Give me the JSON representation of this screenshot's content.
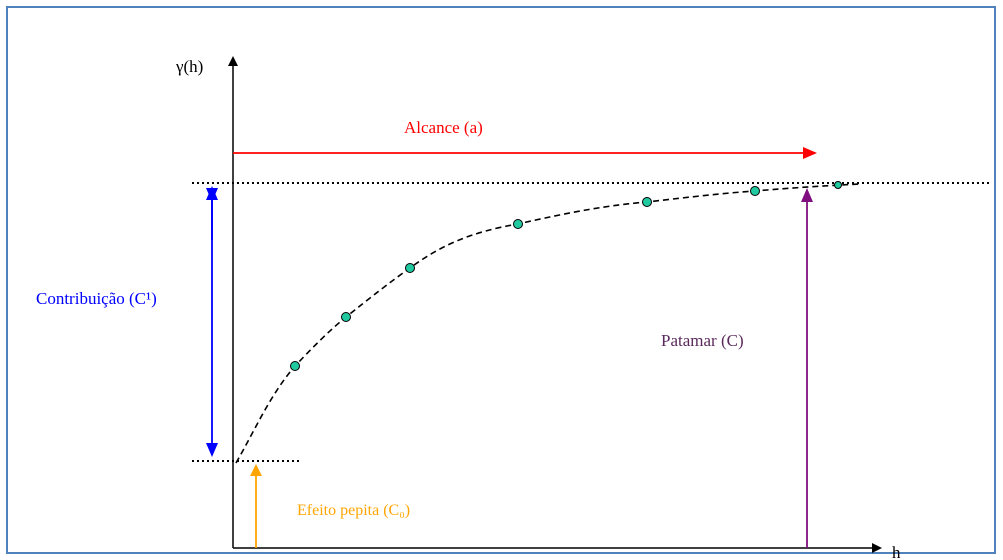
{
  "axes": {
    "y_label": "γ(h)",
    "x_label": "h"
  },
  "labels": {
    "range": "Alcance (a)",
    "contribution": "Contribuição (C¹)",
    "sill": "Patamar (C)",
    "nugget": "Efeito pepita (C₀)"
  },
  "colors": {
    "range": "#ff0000",
    "contribution": "#0000ff",
    "sill": "#7f0f7f",
    "nugget": "#ffa500",
    "points": "#20c9a0",
    "frame": "#4f81bd"
  },
  "points_count": 7
}
